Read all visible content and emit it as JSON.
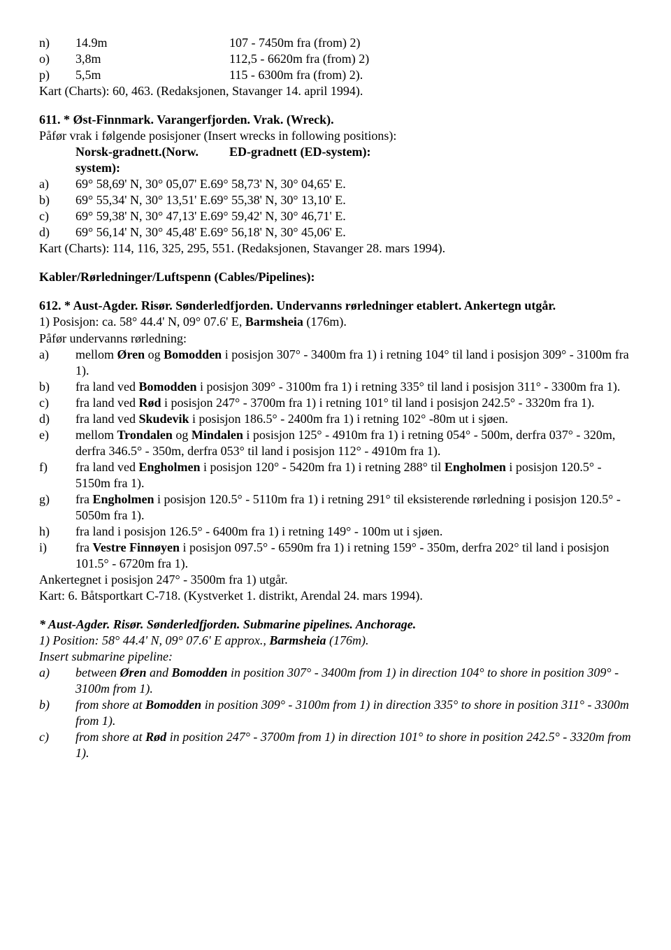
{
  "top_list": [
    {
      "k": "n)",
      "c1": "14.9m",
      "c2": "107 - 7450m fra (from) 2)"
    },
    {
      "k": "o)",
      "c1": "3,8m",
      "c2": "112,5 - 6620m fra (from) 2)"
    },
    {
      "k": "p)",
      "c1": "5,5m",
      "c2": "115 - 6300m fra (from) 2)."
    }
  ],
  "top_footer": "Kart (Charts): 60, 463. (Redaksjonen, Stavanger 14. april 1994).",
  "s611_title": "611. * Øst-Finnmark. Varangerfjorden. Vrak. (Wreck).",
  "s611_line": "Påfør vrak i følgende posisjoner (Insert wrecks in following positions):",
  "s611_hdr_left": "Norsk-gradnett.(Norw. system):",
  "s611_hdr_right": "ED-gradnett (ED-system):",
  "s611_rows": [
    {
      "k": "a)",
      "l": "69° 58,69' N, 30° 05,07' E.",
      "r": "69° 58,73' N, 30° 04,65' E."
    },
    {
      "k": "b)",
      "l": "69° 55,34' N, 30° 13,51' E.",
      "r": "69° 55,38' N, 30° 13,10' E."
    },
    {
      "k": "c)",
      "l": "69° 59,38' N, 30° 47,13' E.",
      "r": "69° 59,42' N, 30° 46,71' E."
    },
    {
      "k": "d)",
      "l": "69° 56,14' N, 30° 45,48' E.",
      "r": "69° 56,18' N, 30° 45,06' E."
    }
  ],
  "s611_footer": "Kart (Charts): 114, 116, 325, 295, 551. (Redaksjonen, Stavanger 28. mars 1994).",
  "cables_hdr": "Kabler/Rørledninger/Luftspenn (Cables/Pipelines):",
  "s612_title": "612. * Aust-Agder. Risør. Sønderledfjorden. Undervanns rørledninger etablert. Ankertegn utgår.",
  "s612_pos_pre": "1) Posisjon: ca. 58° 44.4' N, 09° 07.6' E, ",
  "s612_pos_bold": "Barmsheia",
  "s612_pos_post": " (176m).",
  "s612_sub": "Påfør undervanns rørledning:",
  "s612_items": [
    {
      "k": "a)",
      "pre": "mellom ",
      "b1": "Øren",
      "mid": " og ",
      "b2": "Bomodden",
      "post": " i posisjon 307° - 3400m fra 1) i retning 104° til land i posisjon 309° - 3100m fra 1)."
    },
    {
      "k": "b)",
      "pre": "fra land ved ",
      "b1": "Bomodden",
      "post": " i posisjon 309° - 3100m fra 1) i retning 335° til land i posisjon 311° - 3300m fra 1)."
    },
    {
      "k": "c)",
      "pre": "fra land ved ",
      "b1": "Rød",
      "post": " i posisjon 247° - 3700m fra 1) i retning 101° til land i posisjon 242.5° - 3320m fra 1)."
    },
    {
      "k": "d)",
      "pre": "fra land ved ",
      "b1": "Skudevik",
      "post": " i posisjon 186.5° - 2400m fra 1) i retning 102° -80m ut i sjøen."
    },
    {
      "k": "e)",
      "pre": "mellom ",
      "b1": "Trondalen",
      "mid": " og ",
      "b2": "Mindalen",
      "post": " i posisjon 125° - 4910m fra 1) i retning 054° - 500m, derfra 037° - 320m, derfra 346.5° - 350m, derfra 053° til land i posisjon 112° - 4910m fra 1)."
    },
    {
      "k": "f)",
      "pre": "fra land ved ",
      "b1": "Engholmen",
      "mid": " i posisjon 120° - 5420m fra 1) i retning 288° til ",
      "b2": "Engholmen",
      "post": " i posisjon 120.5° - 5150m fra 1)."
    },
    {
      "k": "g)",
      "pre": "fra ",
      "b1": "Engholmen",
      "post": " i posisjon 120.5° - 5110m fra 1) i retning 291° til eksisterende rørledning i posisjon 120.5° - 5050m fra 1)."
    },
    {
      "k": "h)",
      "plain": "fra land i posisjon 126.5° - 6400m fra 1) i retning 149° - 100m ut i sjøen."
    },
    {
      "k": "i)",
      "pre": "fra ",
      "b1": "Vestre Finnøyen",
      "post": " i posisjon 097.5° - 6590m fra 1) i retning 159° - 350m, derfra 202° til land i posisjon 101.5° - 6720m fra 1)."
    }
  ],
  "s612_anker": "Ankertegnet i posisjon 247° - 3500m fra 1) utgår.",
  "s612_kart": "Kart: 6. Båtsportkart C-718. (Kystverket 1. distrikt, Arendal 24. mars 1994).",
  "en_title": "* Aust-Agder. Risør. Sønderledfjorden. Submarine pipelines. Anchorage.",
  "en_pos_pre": "1) Position: 58° 44.4' N, 09° 07.6' E approx., ",
  "en_pos_bold": "Barmsheia",
  "en_pos_post": " (176m).",
  "en_sub": "Insert submarine pipeline:",
  "en_items": [
    {
      "k": "a)",
      "pre": "between ",
      "b1": "Øren",
      "mid": " and ",
      "b2": "Bomodden",
      "post": " in position 307° - 3400m from 1) in direction 104° to shore in position 309° - 3100m from 1)."
    },
    {
      "k": "b)",
      "pre": "from shore at ",
      "b1": "Bomodden",
      "post": " in position 309° - 3100m from 1) in direction 335° to shore in position 311° - 3300m from 1)."
    },
    {
      "k": "c)",
      "pre": "from shore at ",
      "b1": "Rød",
      "post": " in position 247° - 3700m from 1) in direction 101° to shore in position 242.5° - 3320m from 1)."
    }
  ]
}
